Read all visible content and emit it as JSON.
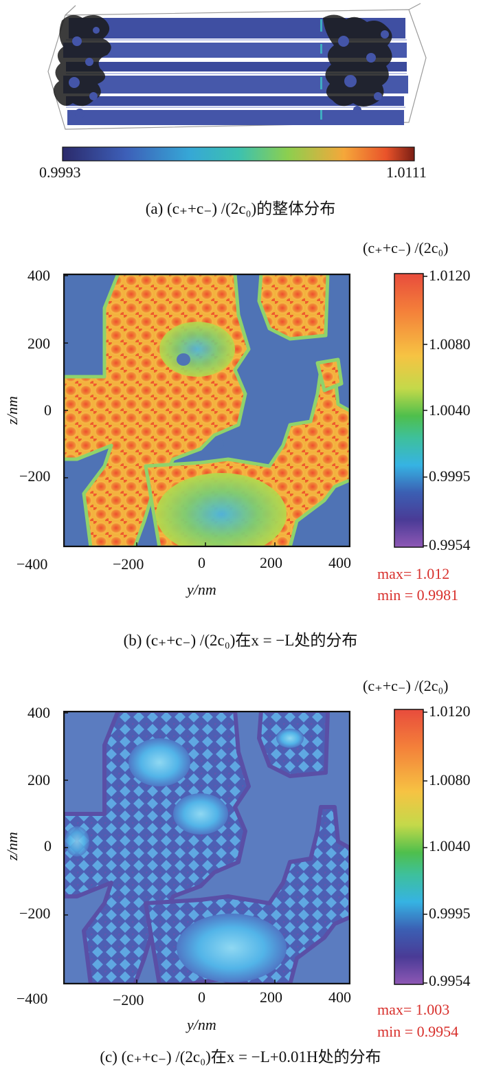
{
  "panel_a": {
    "colorbar_min": "0.9993",
    "colorbar_max": "1.0111",
    "caption": "(a) (c₊+c₋) /(2c₀)的整体分布"
  },
  "panel_b": {
    "colorbar_title": "(c₊+c₋) /(2c₀)",
    "max_text": "max= 1.012",
    "min_text": "min = 0.9981",
    "caption": "(b)  (c₊+c₋) /(2c₀)在x = −L处的分布"
  },
  "panel_c": {
    "colorbar_title": "(c₊+c₋) /(2c₀)",
    "max_text": "max= 1.003",
    "min_text": "min = 0.9954",
    "caption": "(c) (c₊+c₋) /(2c₀)在x = −L+0.01H处的分布"
  },
  "chart_data": [
    {
      "type": "heatmap",
      "title": "(a) (c₊+c₋) /(2c₀)的整体分布",
      "colorbar": {
        "min": 0.9993,
        "max": 1.0111,
        "orientation": "horizontal",
        "ticks": [
          "0.9993",
          "1.0111"
        ]
      }
    },
    {
      "type": "heatmap",
      "xlabel": "y/nm",
      "ylabel": "z/nm",
      "xlim": [
        -400,
        400
      ],
      "ylim": [
        -400,
        400
      ],
      "xticks": [
        "−400",
        "−200",
        "0",
        "200",
        "400"
      ],
      "yticks": [
        "400",
        "200",
        "0",
        "−200"
      ],
      "colorbar": {
        "label": "(c₊+c₋) /(2c₀)",
        "ticks": [
          "1.0120",
          "1.0080",
          "1.0040",
          "0.9995",
          "0.9954"
        ]
      },
      "max": 1.012,
      "min": 0.9981
    },
    {
      "type": "heatmap",
      "xlabel": "y/nm",
      "ylabel": "z/nm",
      "xlim": [
        -400,
        400
      ],
      "ylim": [
        -400,
        400
      ],
      "xticks": [
        "−400",
        "−200",
        "0",
        "200",
        "400"
      ],
      "yticks": [
        "400",
        "200",
        "0",
        "−200"
      ],
      "colorbar": {
        "label": "(c₊+c₋) /(2c₀)",
        "ticks": [
          "1.0120",
          "1.0080",
          "1.0040",
          "0.9995",
          "0.9954"
        ]
      },
      "max": 1.003,
      "min": 0.9954
    }
  ],
  "colors": {
    "background_b": "#4f73b5",
    "background_c": "#5b7cc0",
    "hot": "#e8532b",
    "warm": "#f6a43a",
    "green": "#8fcf4e",
    "cyan": "#49b8e4",
    "purple": "#5a4ea8"
  }
}
